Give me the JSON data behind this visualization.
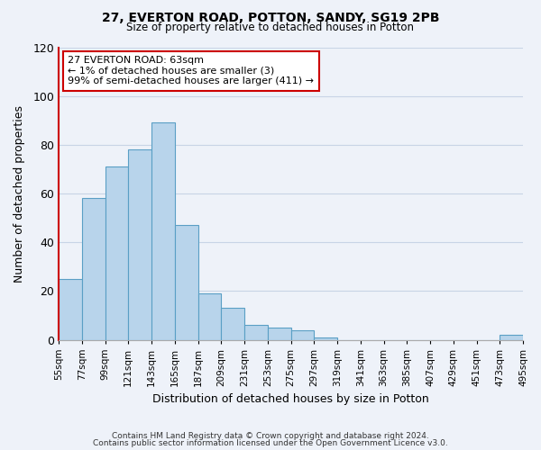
{
  "title": "27, EVERTON ROAD, POTTON, SANDY, SG19 2PB",
  "subtitle": "Size of property relative to detached houses in Potton",
  "xlabel": "Distribution of detached houses by size in Potton",
  "ylabel": "Number of detached properties",
  "bar_values": [
    25,
    58,
    71,
    78,
    89,
    47,
    19,
    13,
    6,
    5,
    4,
    1,
    0,
    0,
    0,
    0,
    0,
    0,
    0,
    2
  ],
  "bar_labels": [
    "55sqm",
    "77sqm",
    "99sqm",
    "121sqm",
    "143sqm",
    "165sqm",
    "187sqm",
    "209sqm",
    "231sqm",
    "253sqm",
    "275sqm",
    "297sqm",
    "319sqm",
    "341sqm",
    "363sqm",
    "385sqm",
    "407sqm",
    "429sqm",
    "451sqm",
    "473sqm",
    "495sqm"
  ],
  "bar_color": "#b8d4eb",
  "bar_edge_color": "#5a9fc5",
  "highlight_color": "#cc0000",
  "annotation_line1": "27 EVERTON ROAD: 63sqm",
  "annotation_line2": "← 1% of detached houses are smaller (3)",
  "annotation_line3": "99% of semi-detached houses are larger (411) →",
  "ylim": [
    0,
    120
  ],
  "yticks": [
    0,
    20,
    40,
    60,
    80,
    100,
    120
  ],
  "footer_line1": "Contains HM Land Registry data © Crown copyright and database right 2024.",
  "footer_line2": "Contains public sector information licensed under the Open Government Licence v3.0.",
  "background_color": "#eef2f9",
  "grid_color": "#c8d4e6",
  "spine_color": "#aaaaaa"
}
